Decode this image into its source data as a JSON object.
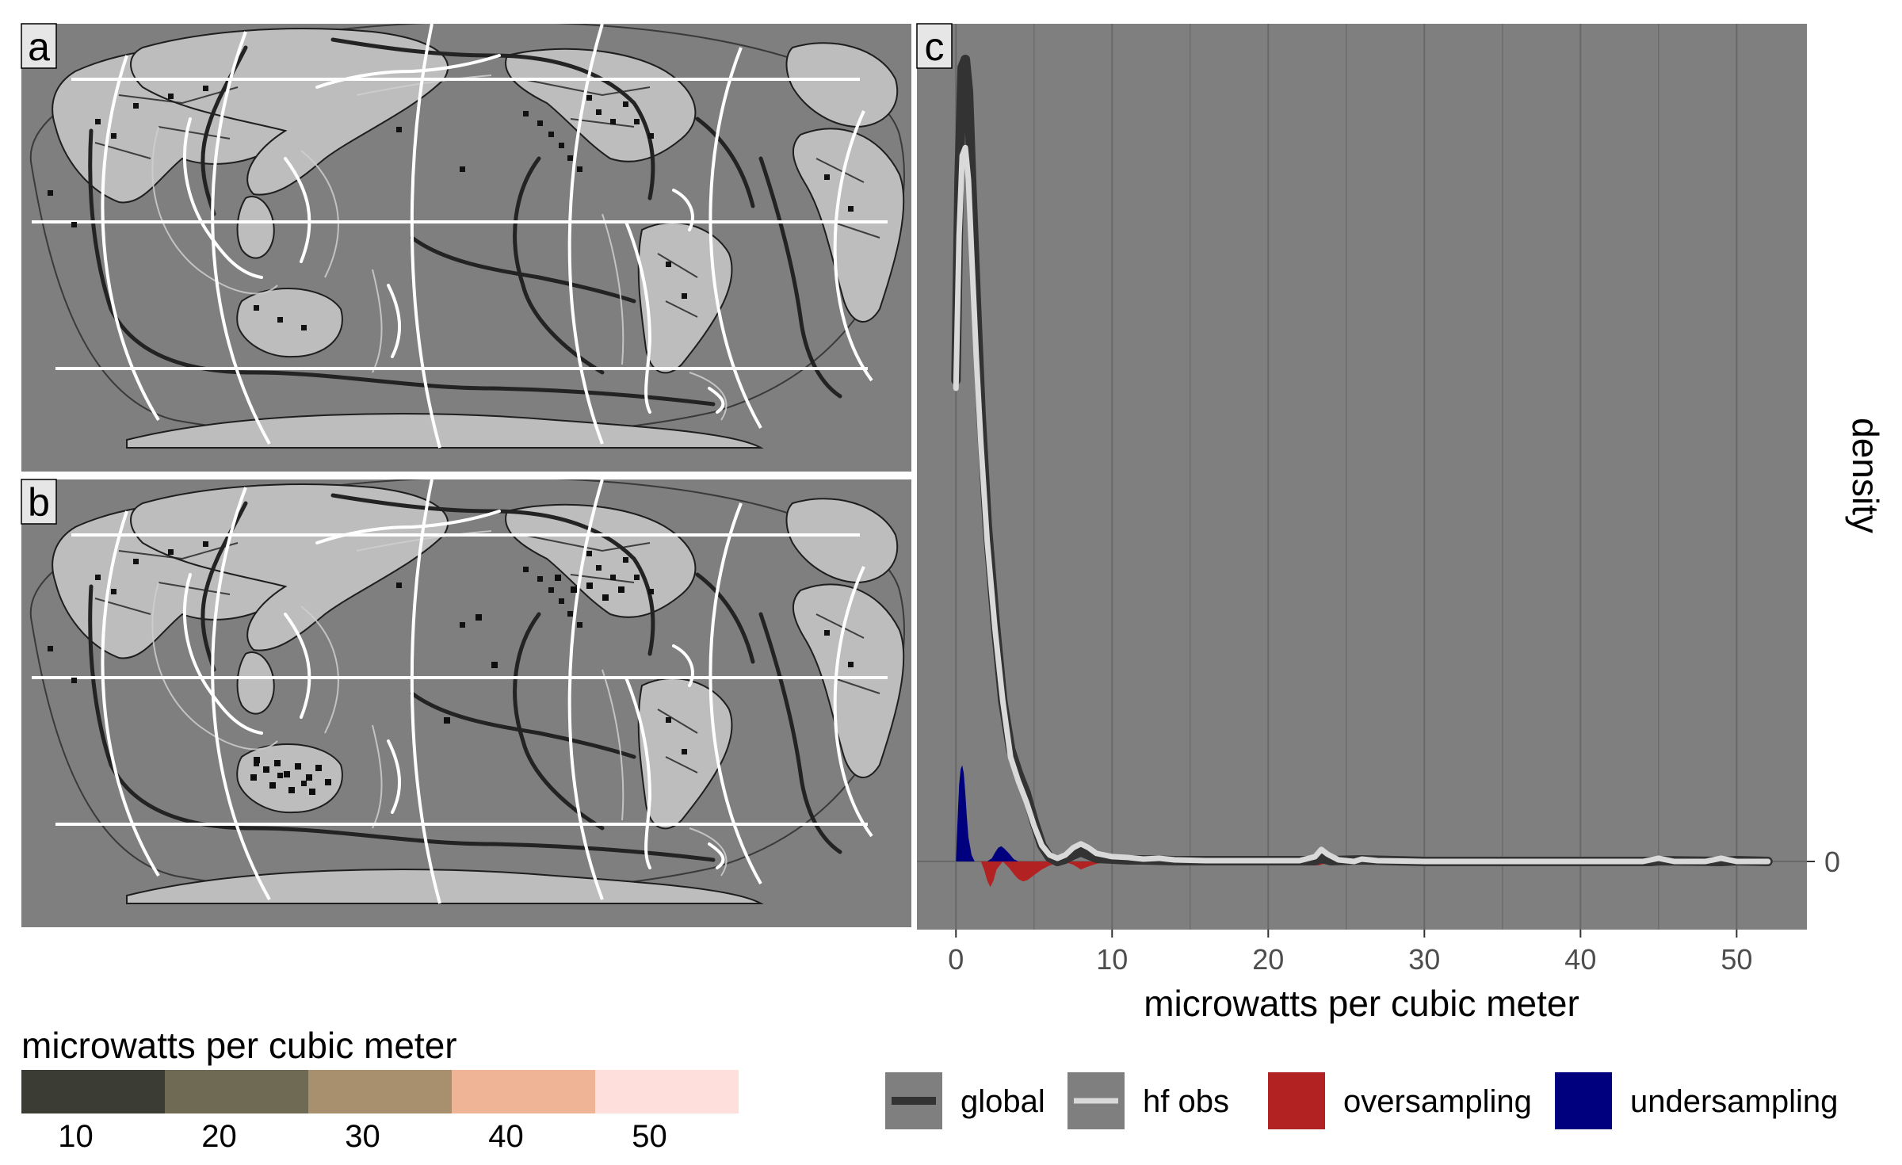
{
  "maps": {
    "panel_a": {
      "tag": "a"
    },
    "panel_b": {
      "tag": "b"
    }
  },
  "color_scale": {
    "title": "microwatts per cubic meter",
    "labels": [
      "10",
      "20",
      "30",
      "40",
      "50"
    ],
    "colors": [
      "#3b3d34",
      "#6e6a53",
      "#a8906f",
      "#efb396",
      "#ffdfdb"
    ]
  },
  "colors": {
    "panel_bg": "#7f7f7f",
    "land": "#bdbdbd",
    "gridline": "#686868",
    "global_line": "#333333",
    "hf_obs_line": "#d9d9d9",
    "oversampling": "#b22222",
    "undersampling": "#00007f"
  },
  "chart_data": {
    "tag": "c",
    "type": "line",
    "xlabel": "microwatts per cubic meter",
    "ylabel": "density",
    "xlim": [
      -2.5,
      54.5
    ],
    "x_ticks": [
      0,
      10,
      20,
      30,
      40,
      50
    ],
    "y_ticks": [
      0
    ],
    "grid": true,
    "legend_position": "bottom",
    "series": [
      {
        "name": "global",
        "kind": "line",
        "x": [
          0,
          0.2,
          0.4,
          0.6,
          0.8,
          1.0,
          1.3,
          1.6,
          2.0,
          2.5,
          3.0,
          3.5,
          4.0,
          4.5,
          5.0,
          5.5,
          6.0,
          6.5,
          7.0,
          7.5,
          8.0,
          8.5,
          9.0,
          10,
          11,
          12,
          14,
          16,
          18,
          20,
          23,
          23.4,
          24,
          26,
          30,
          35,
          40,
          44.5,
          45,
          49,
          50,
          52
        ],
        "y": [
          0.6,
          0.85,
          0.99,
          1.0,
          0.96,
          0.85,
          0.7,
          0.56,
          0.42,
          0.3,
          0.2,
          0.14,
          0.11,
          0.085,
          0.05,
          0.02,
          0.005,
          0.0,
          0.003,
          0.008,
          0.012,
          0.008,
          0.004,
          0.003,
          0.002,
          0.002,
          0.001,
          0.001,
          0.001,
          0.001,
          0.001,
          0.004,
          0.001,
          0.002,
          0.0,
          0.0,
          0.0,
          0.0,
          0.001,
          0.0,
          0.001,
          0.0
        ]
      },
      {
        "name": "hf obs",
        "kind": "line",
        "x": [
          0,
          0.2,
          0.4,
          0.6,
          0.8,
          1.0,
          1.3,
          1.6,
          2.0,
          2.5,
          3.0,
          3.5,
          4.0,
          4.5,
          5.0,
          5.5,
          6.0,
          6.5,
          7.0,
          7.5,
          8.0,
          8.5,
          9.0,
          10,
          11,
          12,
          13,
          14,
          16,
          18,
          20,
          22,
          23,
          23.4,
          23.8,
          24.5,
          25.5,
          26,
          27,
          30,
          35,
          40,
          44,
          45,
          46,
          48,
          49,
          50,
          52
        ],
        "y": [
          0.59,
          0.78,
          0.88,
          0.89,
          0.85,
          0.76,
          0.63,
          0.52,
          0.4,
          0.29,
          0.2,
          0.13,
          0.1,
          0.075,
          0.045,
          0.02,
          0.008,
          0.004,
          0.008,
          0.017,
          0.022,
          0.017,
          0.01,
          0.006,
          0.005,
          0.003,
          0.004,
          0.002,
          0.001,
          0.001,
          0.001,
          0.001,
          0.006,
          0.015,
          0.009,
          0.002,
          0.0,
          0.003,
          0.001,
          0.0,
          0.0,
          0.0,
          0.0,
          0.004,
          0.0,
          0.0,
          0.004,
          0.0,
          0.0
        ]
      },
      {
        "name": "oversampling",
        "kind": "area",
        "x": [
          1.6,
          1.8,
          2.0,
          2.2,
          2.4,
          2.6,
          3.0,
          3.4,
          3.8,
          4.0,
          4.3,
          4.6,
          5.0,
          5.5,
          6.0,
          6.5,
          7.0,
          7.5,
          8.0,
          8.5,
          9.0,
          9.5,
          10,
          10.5,
          10.8,
          11,
          11.2,
          22.5,
          22.9,
          23.2,
          23.6,
          24
        ],
        "y": [
          0.0,
          -0.01,
          -0.024,
          -0.032,
          -0.024,
          -0.01,
          0.0,
          -0.008,
          -0.018,
          -0.022,
          -0.025,
          -0.023,
          -0.017,
          -0.01,
          -0.005,
          -0.002,
          -0.001,
          -0.004,
          -0.01,
          -0.006,
          -0.003,
          -0.001,
          0.0,
          -0.001,
          -0.003,
          -0.001,
          0.0,
          0.0,
          -0.004,
          -0.005,
          -0.003,
          0.0
        ]
      },
      {
        "name": "undersampling",
        "kind": "area",
        "x": [
          0,
          0.1,
          0.2,
          0.3,
          0.4,
          0.5,
          0.6,
          0.7,
          0.8,
          1.0,
          1.2,
          1.5,
          2.0,
          2.3,
          2.5,
          2.7,
          2.9,
          3.1,
          3.4,
          3.7,
          4.0
        ],
        "y": [
          0.0,
          0.05,
          0.095,
          0.115,
          0.12,
          0.11,
          0.085,
          0.055,
          0.03,
          0.008,
          0.0,
          0.0,
          0.0,
          0.004,
          0.011,
          0.017,
          0.019,
          0.016,
          0.01,
          0.003,
          0.0
        ]
      }
    ]
  }
}
